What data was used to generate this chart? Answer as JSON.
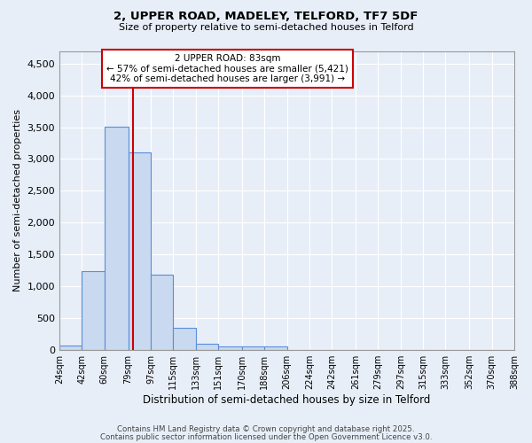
{
  "title1": "2, UPPER ROAD, MADELEY, TELFORD, TF7 5DF",
  "title2": "Size of property relative to semi-detached houses in Telford",
  "xlabel": "Distribution of semi-detached houses by size in Telford",
  "ylabel": "Number of semi-detached properties",
  "bin_edges": [
    24,
    42,
    60,
    79,
    97,
    115,
    133,
    151,
    170,
    188,
    206,
    224,
    242,
    261,
    279,
    297,
    315,
    333,
    352,
    370,
    388
  ],
  "bar_heights": [
    70,
    1230,
    3510,
    3100,
    1175,
    340,
    90,
    55,
    55,
    55,
    0,
    0,
    0,
    0,
    0,
    0,
    0,
    0,
    0,
    0
  ],
  "bar_color": "#c9d9f0",
  "bar_edge_color": "#5b8dd9",
  "property_size": 83,
  "vline_color": "#cc0000",
  "annotation_text": "2 UPPER ROAD: 83sqm\n← 57% of semi-detached houses are smaller (5,421)\n42% of semi-detached houses are larger (3,991) →",
  "box_edge_color": "#cc0000",
  "box_face_color": "#ffffff",
  "ylim": [
    0,
    4700
  ],
  "yticks": [
    0,
    500,
    1000,
    1500,
    2000,
    2500,
    3000,
    3500,
    4000,
    4500
  ],
  "bg_color": "#e8eef8",
  "plot_bg_color": "#e8eef8",
  "grid_color": "#ffffff",
  "footer1": "Contains HM Land Registry data © Crown copyright and database right 2025.",
  "footer2": "Contains public sector information licensed under the Open Government Licence v3.0."
}
